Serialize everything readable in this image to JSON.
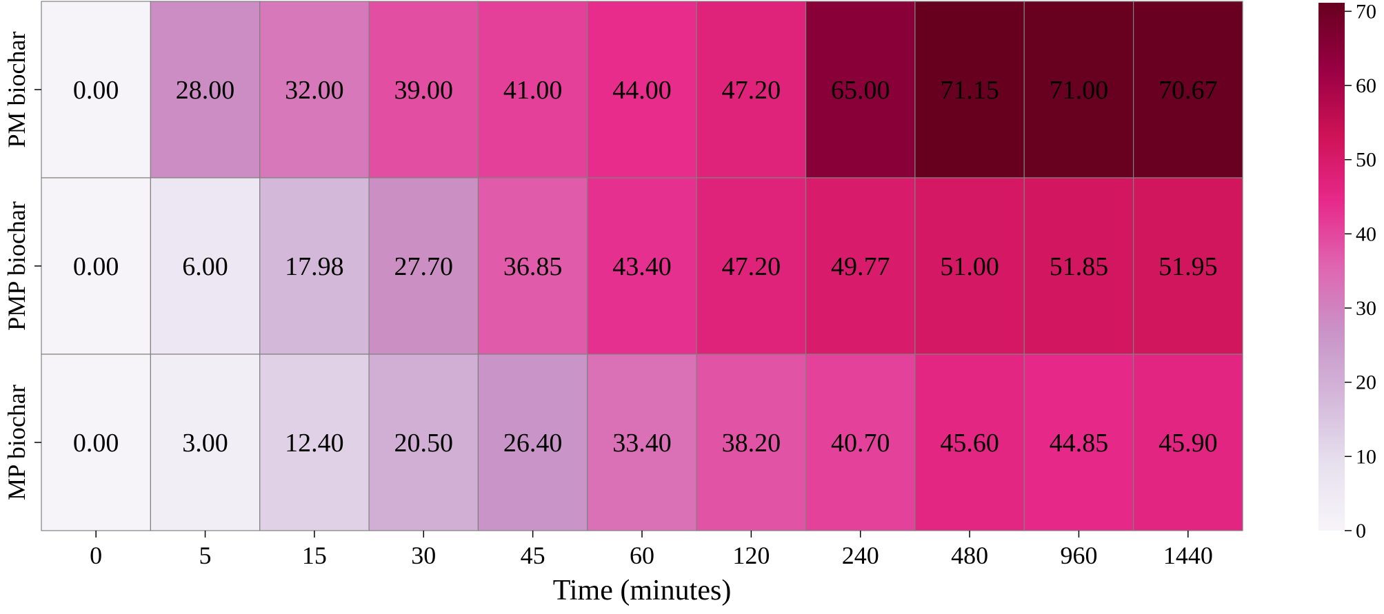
{
  "chart_data": {
    "type": "heatmap",
    "xlabel": "Time (minutes)",
    "ylabel": "",
    "x_categories": [
      "0",
      "5",
      "15",
      "30",
      "45",
      "60",
      "120",
      "240",
      "480",
      "960",
      "1440"
    ],
    "y_categories": [
      "PM biochar",
      "PMP biochar",
      "MP biochar"
    ],
    "values": [
      [
        0.0,
        28.0,
        32.0,
        39.0,
        41.0,
        44.0,
        47.2,
        65.0,
        71.15,
        71.0,
        70.67
      ],
      [
        0.0,
        6.0,
        17.98,
        27.7,
        36.85,
        43.4,
        47.2,
        49.77,
        51.0,
        51.85,
        51.95
      ],
      [
        0.0,
        3.0,
        12.4,
        20.5,
        26.4,
        33.4,
        38.2,
        40.7,
        45.6,
        44.85,
        45.9
      ]
    ],
    "value_labels": [
      [
        "0.00",
        "28.00",
        "32.00",
        "39.00",
        "41.00",
        "44.00",
        "47.20",
        "65.00",
        "71.15",
        "71.00",
        "70.67"
      ],
      [
        "0.00",
        "6.00",
        "17.98",
        "27.70",
        "36.85",
        "43.40",
        "47.20",
        "49.77",
        "51.00",
        "51.85",
        "51.95"
      ],
      [
        "0.00",
        "3.00",
        "12.40",
        "20.50",
        "26.40",
        "33.40",
        "38.20",
        "40.70",
        "45.60",
        "44.85",
        "45.90"
      ]
    ],
    "colorbar": {
      "range": [
        0,
        71.15
      ],
      "ticks": [
        0,
        10,
        20,
        30,
        40,
        50,
        60,
        70
      ],
      "tick_labels": [
        "0",
        "10",
        "20",
        "30",
        "40",
        "50",
        "60",
        "70"
      ],
      "colors": [
        "#f7f4f9",
        "#e7e1ef",
        "#d4b9da",
        "#c994c7",
        "#df65b0",
        "#e7298a",
        "#ce1256",
        "#980043",
        "#67001f"
      ]
    },
    "cell_border_color": "#808080",
    "grid": false
  }
}
